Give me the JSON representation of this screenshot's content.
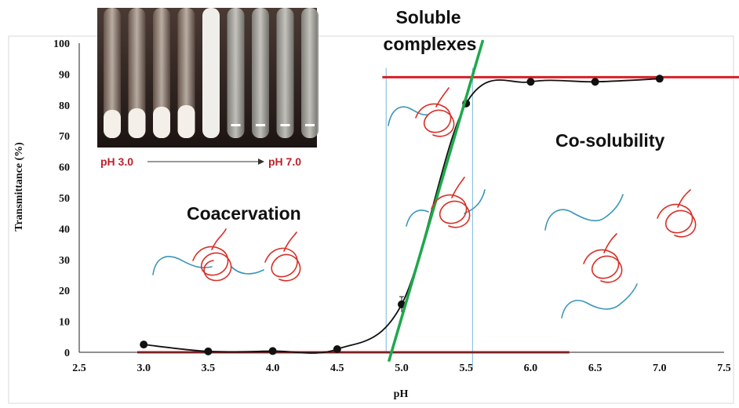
{
  "chart_data": {
    "type": "scatter",
    "xlabel": "pH",
    "ylabel": "Transmittance (%)",
    "xlim": [
      2.5,
      7.5
    ],
    "ylim": [
      0,
      100
    ],
    "x_ticks": [
      "2.5",
      "3.0",
      "3.5",
      "4.0",
      "4.5",
      "5.0",
      "5.5",
      "6.0",
      "6.5",
      "7.0",
      "7.5"
    ],
    "y_ticks": [
      "0",
      "10",
      "20",
      "30",
      "40",
      "50",
      "60",
      "70",
      "80",
      "90",
      "100"
    ],
    "grid": false,
    "series": [
      {
        "x": [
          3.0,
          3.5,
          4.0,
          4.5,
          5.0,
          5.5,
          6.0,
          6.5,
          7.0
        ],
        "y": [
          2.5,
          0.3,
          0.4,
          1.0,
          15.5,
          80.5,
          87.5,
          87.5,
          88.5
        ],
        "color": "#111111"
      }
    ],
    "reference_lines": {
      "upper_horizontal_y": 89,
      "lower_horizontal_y": 0,
      "lower_horizontal_x_end": 6.3,
      "vertical_boundaries_x": [
        4.88,
        5.55
      ],
      "steep_line": {
        "x1": 4.9,
        "y1": -3,
        "x2": 5.63,
        "y2": 101
      }
    },
    "annotations": {
      "coacervation": "Coacervation",
      "soluble_complexes_line1": "Soluble",
      "soluble_complexes_line2": "complexes",
      "co_solubility": "Co-solubility"
    },
    "inset": {
      "tube_count": 9,
      "label_start": "pH 3.0",
      "label_end": "pH 7.0"
    },
    "colors": {
      "curve": "#111111",
      "reference_red": "#d42027",
      "steep_green": "#1ea84b",
      "boundary_blue": "#8fc3df",
      "protein_red": "#d73028",
      "chain_blue": "#3b95b8"
    }
  }
}
